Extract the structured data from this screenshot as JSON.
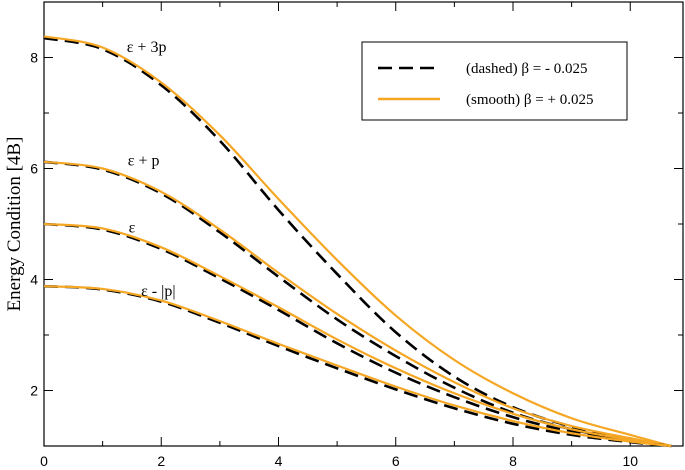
{
  "chart_data": {
    "type": "line",
    "title": "",
    "xlabel": "",
    "ylabel": "Energy Condition  [4B]",
    "xlim": [
      0,
      10.9
    ],
    "ylim": [
      1,
      9
    ],
    "xticks": [
      0,
      2,
      4,
      6,
      8,
      10
    ],
    "yticks": [
      2,
      4,
      6,
      8
    ],
    "grid": false,
    "legend_position": "top-right",
    "legend": [
      {
        "label": "(dashed)  β = - 0.025",
        "style": "dashed",
        "color": "#000000"
      },
      {
        "label": "(smooth)  β = + 0.025",
        "style": "solid",
        "color": "#f5a623"
      }
    ],
    "x": [
      0,
      1,
      2,
      3,
      4,
      5,
      6,
      7,
      8,
      9,
      10,
      10.7
    ],
    "series": [
      {
        "name": "ε + 3p",
        "dashed": [
          8.35,
          8.15,
          7.5,
          6.5,
          5.25,
          4.1,
          3.05,
          2.25,
          1.7,
          1.35,
          1.12,
          1.0
        ],
        "smooth": [
          8.38,
          8.18,
          7.55,
          6.6,
          5.45,
          4.35,
          3.35,
          2.55,
          1.95,
          1.5,
          1.2,
          1.0
        ]
      },
      {
        "name": "ε + p",
        "dashed": [
          6.12,
          5.98,
          5.55,
          4.85,
          4.05,
          3.28,
          2.62,
          2.05,
          1.6,
          1.3,
          1.1,
          1.0
        ],
        "smooth": [
          6.12,
          6.0,
          5.58,
          4.9,
          4.12,
          3.38,
          2.72,
          2.15,
          1.68,
          1.36,
          1.14,
          1.0
        ]
      },
      {
        "name": "ε",
        "dashed": [
          5.0,
          4.9,
          4.55,
          4.02,
          3.45,
          2.85,
          2.32,
          1.88,
          1.52,
          1.26,
          1.09,
          1.0
        ],
        "smooth": [
          5.0,
          4.92,
          4.58,
          4.06,
          3.5,
          2.92,
          2.4,
          1.95,
          1.58,
          1.3,
          1.11,
          1.0
        ]
      },
      {
        "name": "ε - |p|",
        "dashed": [
          3.88,
          3.82,
          3.6,
          3.22,
          2.8,
          2.4,
          2.02,
          1.68,
          1.4,
          1.2,
          1.07,
          1.0
        ],
        "smooth": [
          3.88,
          3.83,
          3.62,
          3.25,
          2.84,
          2.45,
          2.07,
          1.73,
          1.45,
          1.23,
          1.08,
          1.0
        ]
      }
    ],
    "curve_labels": [
      {
        "text": "ε + 3p",
        "x": 1.75,
        "y": 8.1
      },
      {
        "text": "ε + p",
        "x": 1.7,
        "y": 6.05
      },
      {
        "text": "ε",
        "x": 1.5,
        "y": 4.85
      },
      {
        "text": "ε - |p|",
        "x": 1.95,
        "y": 3.7
      }
    ],
    "colors": {
      "dashed": "#000000",
      "smooth": "#f5a623"
    }
  }
}
